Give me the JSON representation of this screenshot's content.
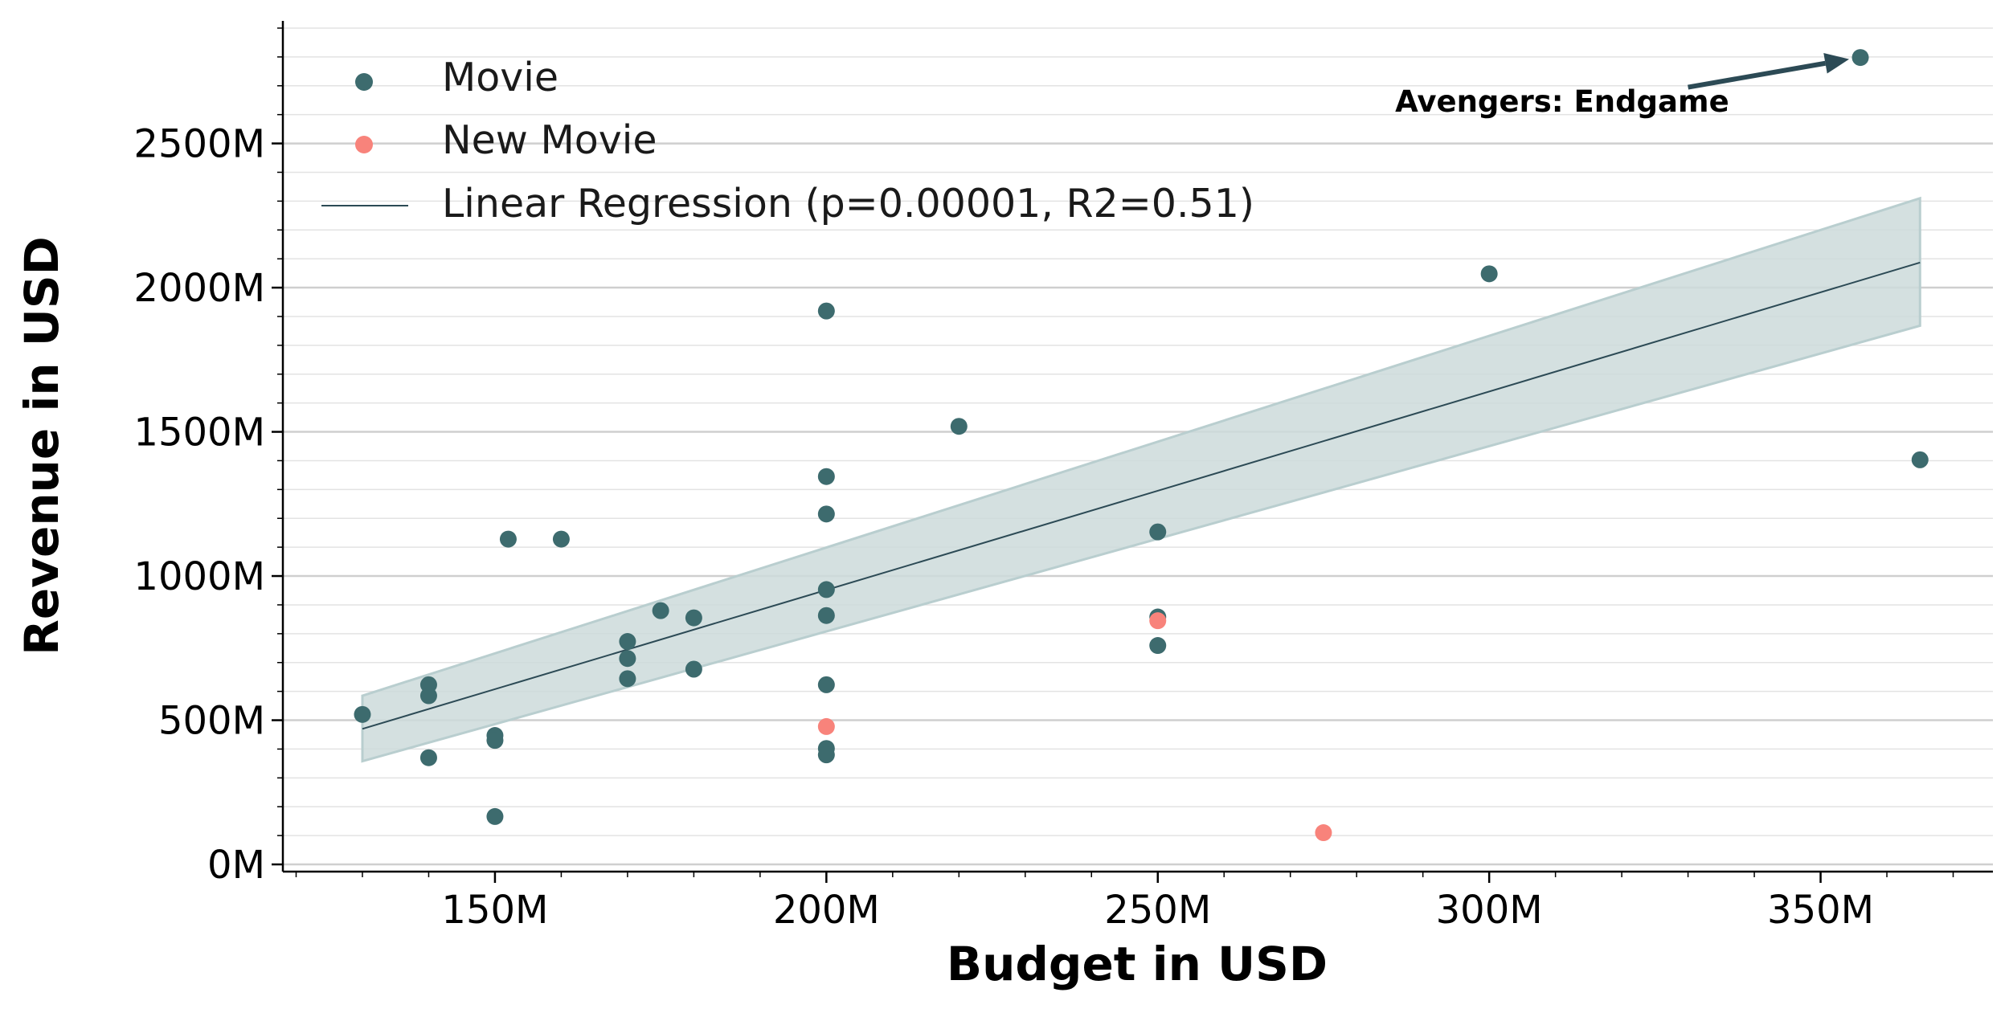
{
  "chart_data": {
    "type": "scatter",
    "xlabel": "Budget in USD",
    "ylabel": "Revenue in USD",
    "xlim": [
      118,
      376
    ],
    "ylim": [
      -25,
      2925
    ],
    "x_ticks": [
      150,
      200,
      250,
      300,
      350
    ],
    "x_tick_labels": [
      "150M",
      "200M",
      "250M",
      "300M",
      "350M"
    ],
    "x_minor_step": 10,
    "y_ticks": [
      0,
      500,
      1000,
      1500,
      2000,
      2500
    ],
    "y_tick_labels": [
      "0M",
      "500M",
      "1000M",
      "1500M",
      "2000M",
      "2500M"
    ],
    "y_minor_step": 100,
    "grid": true,
    "legend_position": "top-left",
    "legend": {
      "movie": "Movie",
      "new_movie": "New Movie",
      "regression": "Linear Regression (p=0.00001, R2=0.51)"
    },
    "series": [
      {
        "name": "Movie",
        "color": "#3d6b6e",
        "points": [
          [
            356,
            2798
          ],
          [
            300,
            2048
          ],
          [
            200,
            1919
          ],
          [
            365,
            1403
          ],
          [
            220,
            1519
          ],
          [
            200,
            1345
          ],
          [
            200,
            1215
          ],
          [
            152,
            1128
          ],
          [
            160,
            1128
          ],
          [
            250,
            1153
          ],
          [
            200,
            953
          ],
          [
            200,
            863
          ],
          [
            175,
            880
          ],
          [
            180,
            855
          ],
          [
            250,
            858
          ],
          [
            170,
            773
          ],
          [
            170,
            714
          ],
          [
            180,
            677
          ],
          [
            170,
            644
          ],
          [
            250,
            759
          ],
          [
            140,
            623
          ],
          [
            140,
            585
          ],
          [
            130,
            520
          ],
          [
            200,
            623
          ],
          [
            150,
            447
          ],
          [
            150,
            430
          ],
          [
            200,
            402
          ],
          [
            200,
            380
          ],
          [
            140,
            370
          ],
          [
            150,
            166
          ]
        ]
      },
      {
        "name": "New Movie",
        "color": "#f8837b",
        "points": [
          [
            200,
            478
          ],
          [
            250,
            845
          ],
          [
            275,
            110
          ]
        ]
      }
    ],
    "regression": {
      "color": "#2c4a55",
      "band_color": "#ccdadb",
      "x_range": [
        130,
        365
      ],
      "y_at_x_start": 470,
      "y_at_x_end": 2087,
      "band_upper": [
        585,
        2310
      ],
      "band_lower": [
        358,
        1868
      ]
    },
    "annotation": {
      "text": "Avengers: Endgame",
      "arrow_color": "#2c4a55",
      "target": [
        356,
        2798
      ],
      "text_anchor": [
        311,
        2610
      ],
      "tail": [
        330,
        2695
      ]
    }
  }
}
